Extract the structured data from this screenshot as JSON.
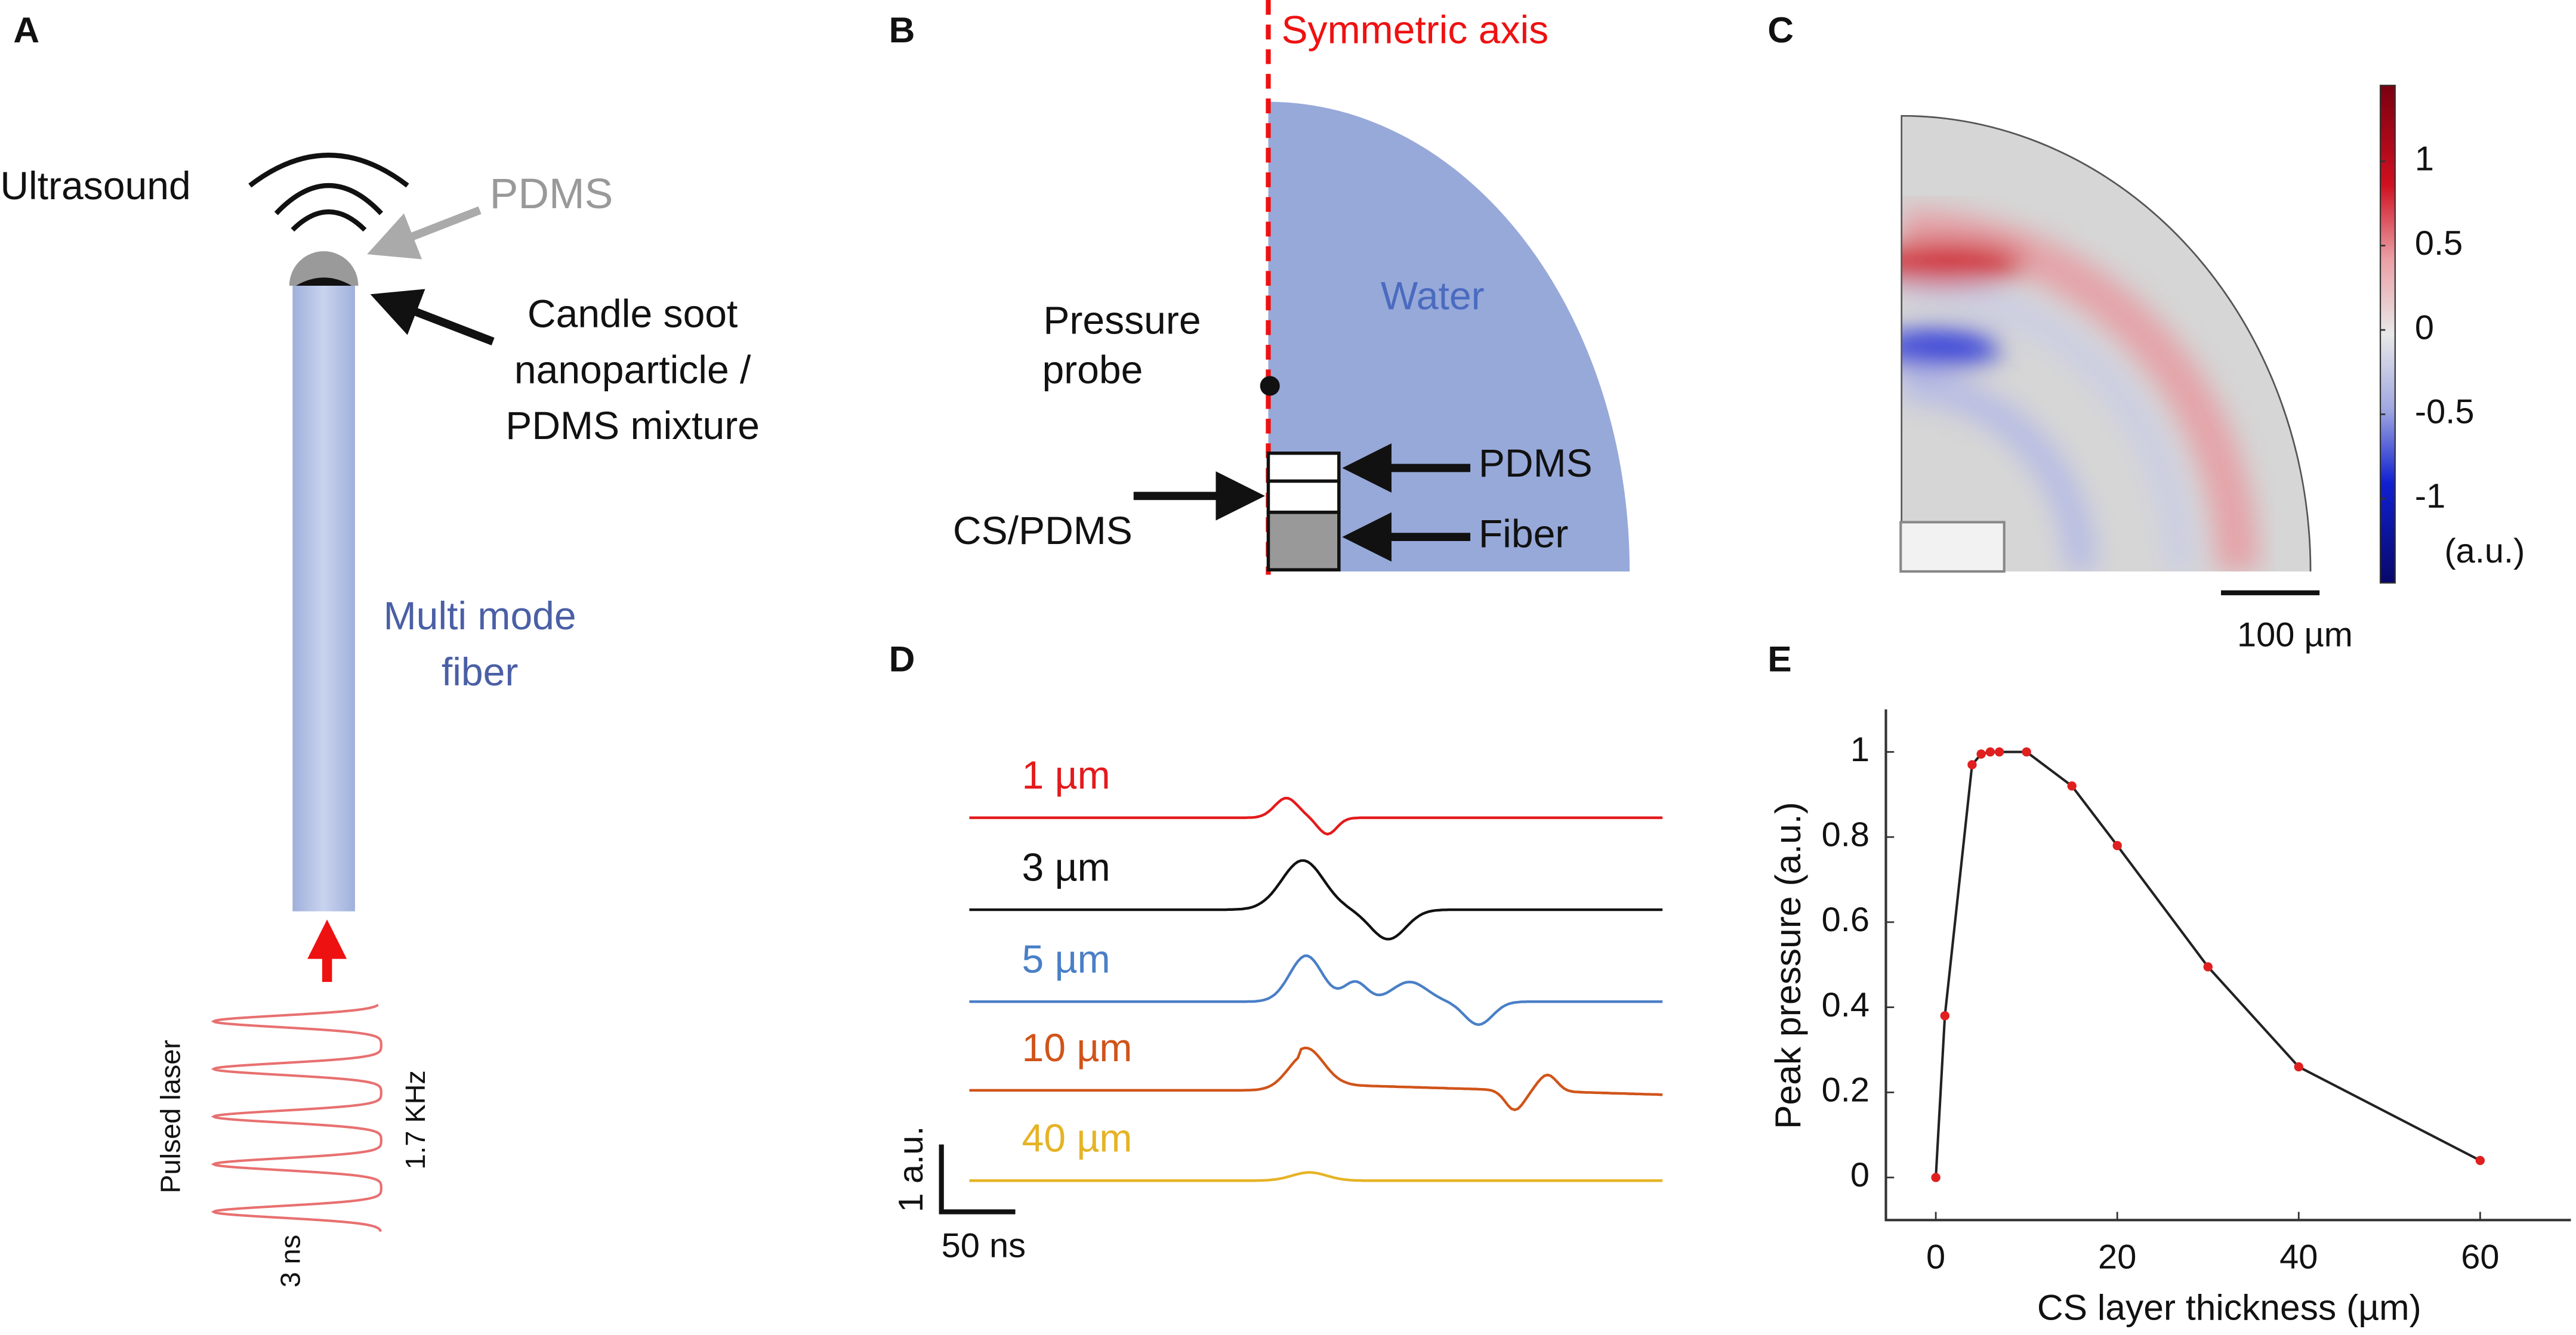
{
  "panel_labels": [
    "A",
    "B",
    "C",
    "D",
    "E"
  ],
  "panel_a": {
    "ultrasound": "Ultrasound",
    "pdms": "PDMS",
    "mixture": [
      "Candle soot",
      "nanoparticle /",
      "PDMS mixture"
    ],
    "fiber": [
      "Multi mode",
      "fiber"
    ],
    "laser": "Pulsed laser",
    "rate": "1.7 KHz",
    "width": "3 ns"
  },
  "panel_b": {
    "axis": "Symmetric axis",
    "water": "Water",
    "probe": [
      "Pressure",
      "probe"
    ],
    "pdms": "PDMS",
    "fiber": "Fiber",
    "cs": "CS/PDMS"
  },
  "panel_c": {
    "colorbar": {
      "lim": [
        -1.5,
        1.45
      ],
      "ticks": [
        1,
        0.5,
        0,
        -0.5,
        -1
      ],
      "unit": "(a.u.)"
    },
    "scale": "100 µm"
  },
  "panel_d": {
    "traces": [
      {
        "name": "1 µm",
        "color": "#e41a1c"
      },
      {
        "name": "3 µm",
        "color": "#111111"
      },
      {
        "name": "5 µm",
        "color": "#4a7fc7"
      },
      {
        "name": "10 µm",
        "color": "#d0541a"
      },
      {
        "name": "40 µm",
        "color": "#e6b325"
      }
    ],
    "scale_y": "1 a.u.",
    "scale_x": "50 ns"
  },
  "chart_data": {
    "type": "line",
    "xlabel": "CS layer thickness (µm)",
    "ylabel": "Peak pressure (a.u.)",
    "x": [
      0,
      1,
      4,
      5,
      6,
      7,
      10,
      15,
      20,
      30,
      40,
      60
    ],
    "values": [
      0,
      0.38,
      0.97,
      0.995,
      1,
      1,
      1,
      0.92,
      0.78,
      0.495,
      0.26,
      0.04
    ],
    "color": "#222222",
    "marker_color": "#e02020",
    "xlim": [
      -5.5,
      70
    ],
    "ylim": [
      -0.1,
      1.1
    ],
    "xticks": [
      0,
      20,
      40,
      60
    ],
    "yticks": [
      0,
      0.2,
      0.4,
      0.6,
      0.8,
      1
    ]
  }
}
